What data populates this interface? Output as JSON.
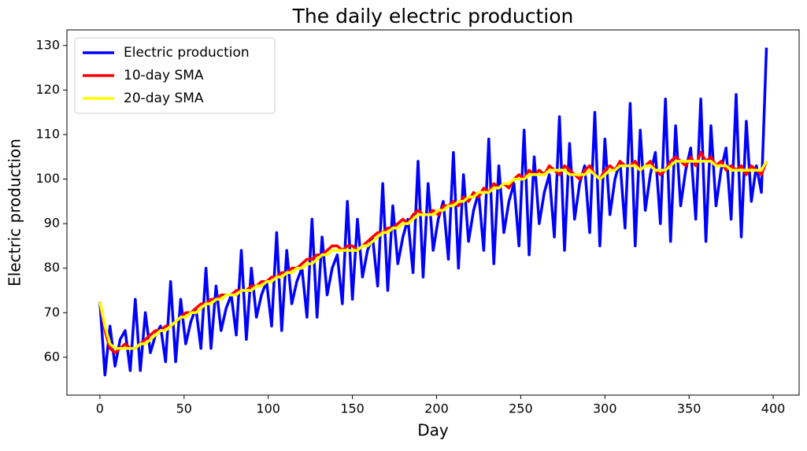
{
  "chart_data": {
    "type": "line",
    "title": "The daily electric production",
    "xlabel": "Day",
    "ylabel": "Electric production",
    "x": [
      0,
      3,
      6,
      9,
      12,
      15,
      18,
      21,
      24,
      27,
      30,
      33,
      36,
      39,
      42,
      45,
      48,
      51,
      54,
      57,
      60,
      63,
      66,
      69,
      72,
      75,
      78,
      81,
      84,
      87,
      90,
      93,
      96,
      99,
      102,
      105,
      108,
      111,
      114,
      117,
      120,
      123,
      126,
      129,
      132,
      135,
      138,
      141,
      144,
      147,
      150,
      153,
      156,
      159,
      162,
      165,
      168,
      171,
      174,
      177,
      180,
      183,
      186,
      189,
      192,
      195,
      198,
      201,
      204,
      207,
      210,
      213,
      216,
      219,
      222,
      225,
      228,
      231,
      234,
      237,
      240,
      243,
      246,
      249,
      252,
      255,
      258,
      261,
      264,
      267,
      270,
      273,
      276,
      279,
      282,
      285,
      288,
      291,
      294,
      297,
      300,
      303,
      306,
      309,
      312,
      315,
      318,
      321,
      324,
      327,
      330,
      333,
      336,
      339,
      342,
      345,
      348,
      351,
      354,
      357,
      360,
      363,
      366,
      369,
      372,
      375,
      378,
      381,
      384,
      387,
      390,
      393,
      396
    ],
    "series": [
      {
        "name": "Electric production",
        "color": "#0000ff",
        "values": [
          72.5,
          56,
          67,
          58,
          64,
          66,
          57,
          73,
          57,
          70,
          61,
          65,
          67,
          59,
          77,
          59,
          73,
          63,
          68,
          71,
          62,
          80,
          62,
          76,
          66,
          71,
          74,
          65,
          84,
          64,
          80,
          69,
          74,
          77,
          67,
          88,
          66,
          84,
          72,
          77,
          80,
          69,
          91,
          69,
          87,
          74,
          80,
          83,
          72,
          95,
          73,
          91,
          78,
          84,
          87,
          76,
          99,
          75,
          94,
          81,
          87,
          91,
          79,
          104,
          78,
          99,
          84,
          91,
          95,
          82,
          106,
          80,
          101,
          86,
          93,
          97,
          84,
          109,
          81,
          103,
          88,
          95,
          99,
          85,
          111,
          83,
          105,
          90,
          97,
          101,
          87,
          114,
          84,
          108,
          91,
          99,
          103,
          88,
          115,
          85,
          109,
          92,
          100,
          104,
          89,
          117,
          85,
          111,
          93,
          101,
          106,
          90,
          118,
          86,
          112,
          94,
          102,
          107,
          91,
          118,
          86,
          112,
          94,
          102,
          107,
          91,
          119,
          87,
          113,
          95,
          103,
          97,
          129.5
        ]
      },
      {
        "name": "10-day SMA",
        "color": "#ff0000",
        "values": [
          72.5,
          66,
          62,
          61,
          62,
          63,
          62,
          62,
          63,
          64,
          65,
          66,
          66,
          67,
          67,
          68,
          69,
          70,
          70,
          71,
          72,
          72,
          73,
          73,
          74,
          74,
          74,
          75,
          75,
          75,
          76,
          76,
          77,
          77,
          78,
          78,
          79,
          79,
          80,
          80,
          81,
          82,
          82,
          83,
          83,
          84,
          85,
          85,
          84,
          85,
          85,
          84,
          85,
          86,
          87,
          88,
          88,
          89,
          89,
          90,
          91,
          90,
          92,
          93,
          92,
          92,
          93,
          92,
          94,
          94,
          95,
          94,
          96,
          95,
          97,
          96,
          98,
          97,
          99,
          98,
          99,
          98,
          100,
          101,
          100,
          102,
          101,
          102,
          101,
          103,
          102,
          101,
          103,
          102,
          101,
          100,
          102,
          103,
          101,
          100,
          102,
          103,
          102,
          104,
          103,
          103,
          104,
          102,
          103,
          104,
          102,
          101,
          102,
          104,
          105,
          104,
          103,
          105,
          103,
          106,
          104,
          105,
          103,
          104,
          102,
          103,
          102,
          103,
          101,
          103,
          102,
          101,
          104
        ]
      },
      {
        "name": "20-day SMA",
        "color": "#ffff00",
        "values": [
          72.5,
          67,
          63,
          62,
          62,
          62,
          62,
          62,
          63,
          63,
          64,
          65,
          66,
          66,
          67,
          68,
          69,
          69,
          70,
          70,
          71,
          72,
          72,
          73,
          73,
          74,
          74,
          74,
          75,
          75,
          75,
          76,
          76,
          77,
          77,
          78,
          78,
          79,
          79,
          80,
          80,
          81,
          81,
          82,
          83,
          83,
          84,
          84,
          84,
          84,
          84,
          84,
          85,
          85,
          86,
          87,
          88,
          88,
          89,
          89,
          90,
          90,
          91,
          92,
          92,
          92,
          92,
          93,
          93,
          94,
          94,
          95,
          95,
          96,
          96,
          97,
          97,
          97,
          98,
          98,
          99,
          99,
          100,
          100,
          100,
          101,
          101,
          101,
          101,
          102,
          102,
          102,
          102,
          101,
          101,
          101,
          101,
          102,
          101,
          100,
          101,
          102,
          102,
          103,
          103,
          103,
          103,
          102,
          103,
          103,
          102,
          102,
          102,
          103,
          104,
          104,
          104,
          104,
          104,
          104,
          104,
          104,
          103,
          103,
          103,
          102,
          102,
          102,
          102,
          102,
          102,
          102,
          104
        ]
      }
    ],
    "xlim": [
      -19.6,
      415.4
    ],
    "xticks": [
      0,
      50,
      100,
      150,
      200,
      250,
      300,
      350,
      400
    ],
    "ylim": [
      51.5,
      133.5
    ],
    "yticks": [
      60,
      70,
      80,
      90,
      100,
      110,
      120,
      130
    ],
    "legend": "upper left"
  }
}
